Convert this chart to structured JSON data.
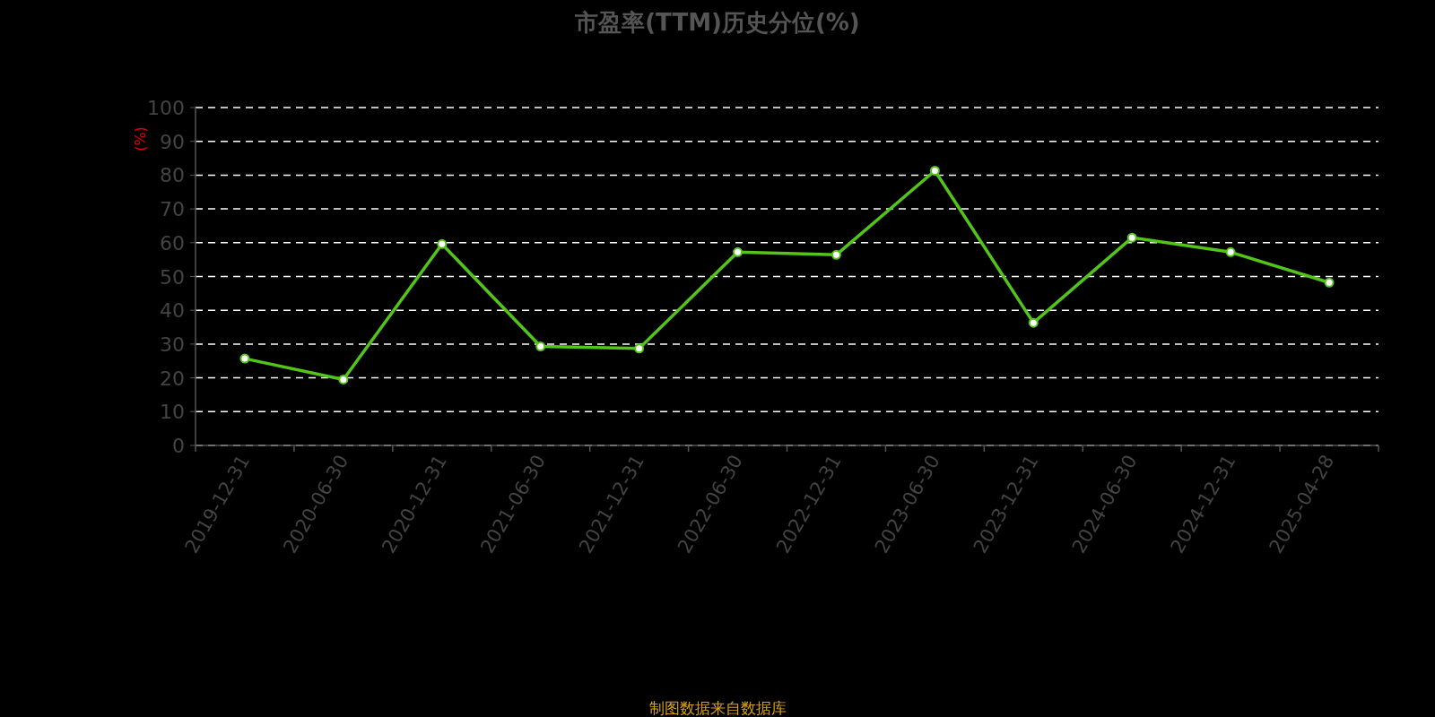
{
  "chart_data": {
    "type": "line",
    "title": "市盈率(TTM)历史分位(%)",
    "ylabel": "(%)",
    "categories": [
      "2019-12-31",
      "2020-06-30",
      "2020-12-31",
      "2021-06-30",
      "2021-12-31",
      "2022-06-30",
      "2022-12-31",
      "2023-06-30",
      "2023-12-31",
      "2024-06-30",
      "2024-12-31",
      "2025-04-28"
    ],
    "series": [
      {
        "color": "#52c41a",
        "values": [
          25.7,
          19.5,
          59.6,
          29.3,
          28.7,
          57.2,
          56.4,
          81.3,
          36.3,
          61.5,
          57.2,
          48.2
        ]
      }
    ],
    "ylim": [
      0,
      100
    ],
    "yticks": [
      0,
      10,
      20,
      30,
      40,
      50,
      60,
      70,
      80,
      90,
      100
    ],
    "grid": "y",
    "marker": "circle",
    "line_style": "solid",
    "annotations": [
      "制图数据来自数据库"
    ]
  }
}
